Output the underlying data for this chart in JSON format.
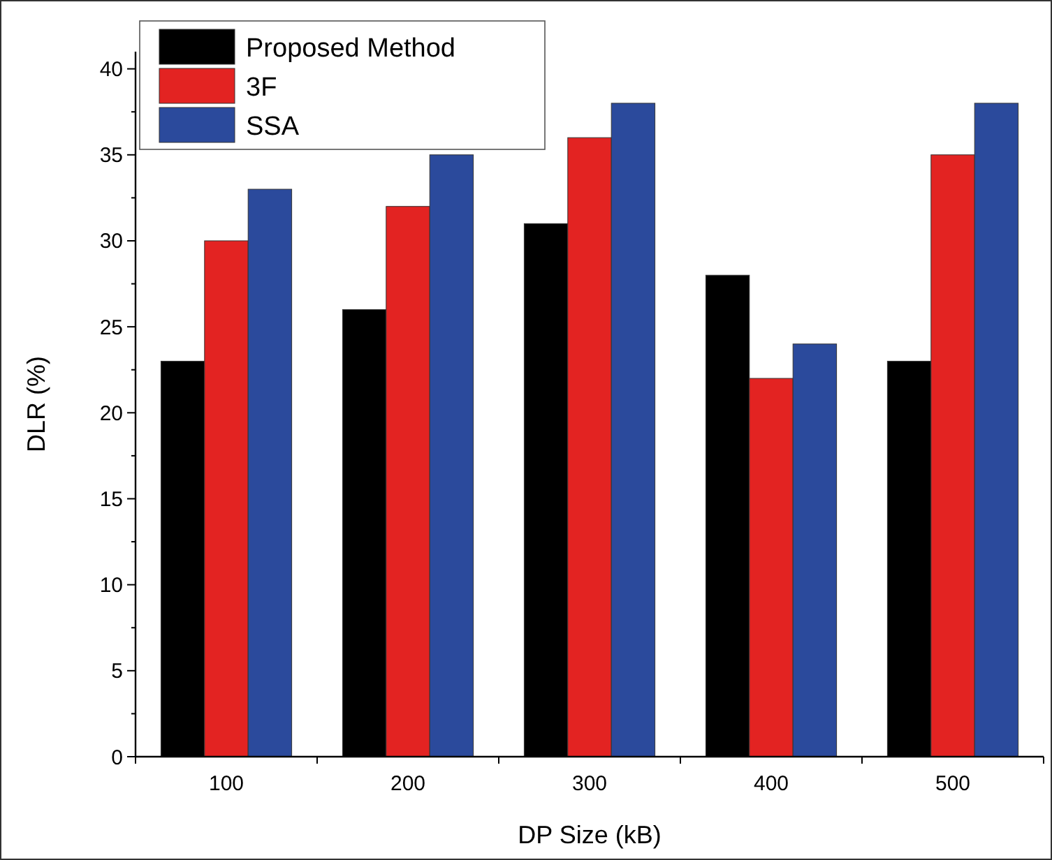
{
  "chart_data": {
    "type": "bar",
    "xlabel": "DP Size (kB)",
    "ylabel": "DLR (%)",
    "categories": [
      "100",
      "200",
      "300",
      "400",
      "500"
    ],
    "series": [
      {
        "name": "Proposed Method",
        "color": "#000000",
        "values": [
          23,
          26,
          31,
          28,
          23
        ]
      },
      {
        "name": "3F",
        "color": "#e32322",
        "values": [
          30,
          32,
          36,
          22,
          35
        ]
      },
      {
        "name": "SSA",
        "color": "#2b4a9c",
        "values": [
          33,
          35,
          38,
          24,
          38
        ]
      }
    ],
    "ylim": [
      0,
      41
    ],
    "yticks": [
      0,
      {
        "value": 2.5,
        "label": null
      },
      5,
      {
        "value": 7.5,
        "label": null
      },
      10,
      {
        "value": 12.5,
        "label": null
      },
      15,
      {
        "value": 17.5,
        "label": null
      },
      20,
      {
        "value": 22.5,
        "label": null
      },
      25,
      {
        "value": 27.5,
        "label": null
      },
      30,
      {
        "value": 32.5,
        "label": null
      },
      35,
      {
        "value": 37.5,
        "label": null
      },
      40
    ],
    "grid": false,
    "legend": "top left"
  }
}
